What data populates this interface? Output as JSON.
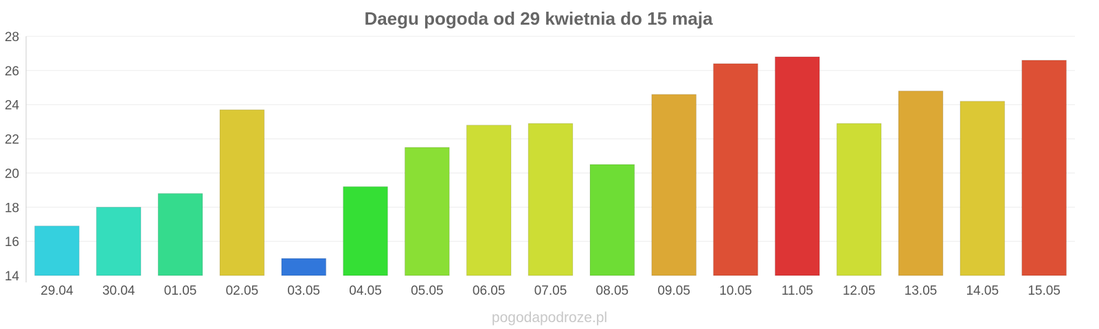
{
  "chart_data": {
    "type": "bar",
    "title": "Daegu pogoda od 29 kwietnia do 15 maja",
    "xlabel": "",
    "ylabel": "",
    "ylim": [
      14,
      28
    ],
    "y_ticks": [
      14,
      16,
      18,
      20,
      22,
      24,
      26,
      28
    ],
    "grid": true,
    "legend": "none",
    "categories": [
      "29.04",
      "30.04",
      "01.05",
      "02.05",
      "03.05",
      "04.05",
      "05.05",
      "06.05",
      "07.05",
      "08.05",
      "09.05",
      "10.05",
      "11.05",
      "12.05",
      "13.05",
      "14.05",
      "15.05"
    ],
    "values": [
      16.9,
      18.0,
      18.8,
      23.7,
      15.0,
      19.2,
      21.5,
      22.8,
      22.9,
      20.5,
      24.6,
      26.4,
      26.8,
      22.9,
      24.8,
      24.2,
      26.6
    ],
    "bar_colors": [
      "#35d0de",
      "#35ddbc",
      "#35db8d",
      "#dbc835",
      "#3177db",
      "#35df35",
      "#8adf35",
      "#cddd35",
      "#cddd35",
      "#6edd35",
      "#dca835",
      "#dd5035",
      "#dd3535",
      "#cddd35",
      "#dca835",
      "#dcc835",
      "#dd5035"
    ]
  },
  "watermark": "pogodapodroze.pl"
}
